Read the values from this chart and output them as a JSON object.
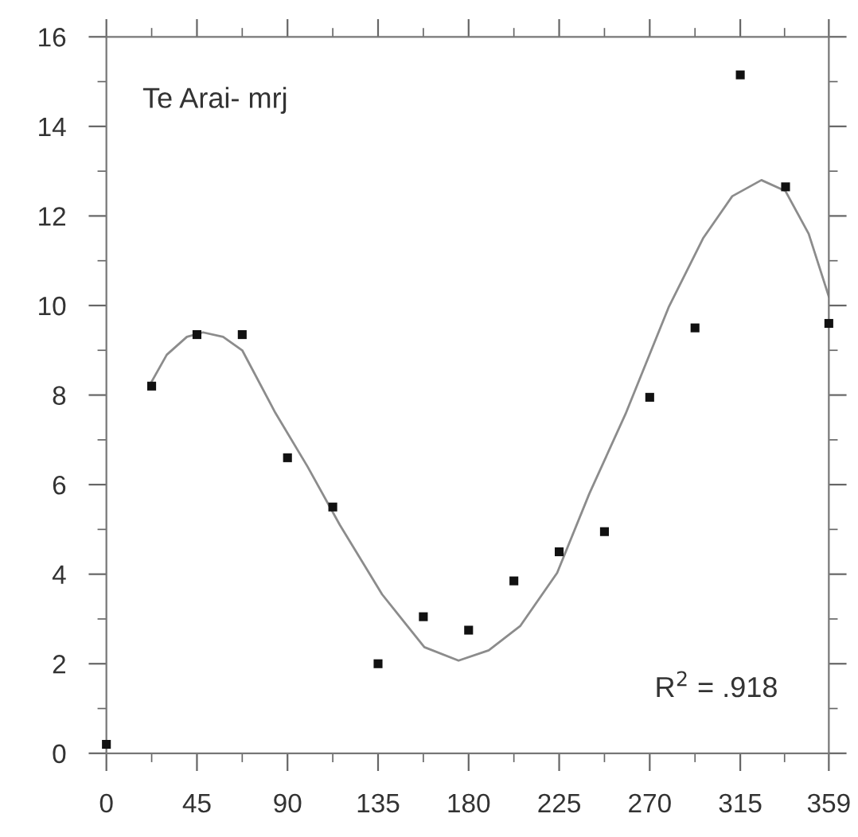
{
  "chart_data": {
    "type": "scatter",
    "annotations": [
      "Te Arai- mrj",
      "R$^{2}$ = .918"
    ],
    "xlim": [
      0,
      359
    ],
    "ylim": [
      0,
      16
    ],
    "xticks": [
      0,
      45,
      90,
      135,
      180,
      225,
      270,
      315,
      359
    ],
    "yticks": [
      0,
      2,
      4,
      6,
      8,
      10,
      12,
      14,
      16
    ],
    "grid": false,
    "legend": false,
    "series": [
      {
        "marker": "square",
        "color": "#111111",
        "x": [
          0,
          22.5,
          45,
          67.5,
          90,
          112.5,
          135,
          157.5,
          180,
          202.5,
          225,
          247.5,
          270,
          292.5,
          315,
          337.5,
          359
        ],
        "values": [
          0.2,
          8.2,
          9.35,
          9.35,
          6.6,
          5.5,
          2.0,
          3.05,
          2.75,
          3.85,
          4.5,
          4.95,
          7.95,
          9.5,
          15.15,
          12.65,
          9.6
        ]
      },
      {
        "type": "line",
        "marker": "none",
        "line_style": "solid",
        "color": "#8c8c8c",
        "x": [
          22.5,
          30,
          40,
          48,
          58,
          67.5,
          84,
          100,
          116,
          137,
          158,
          175,
          190,
          205.6,
          224,
          240,
          258,
          279.4,
          296.5,
          311,
          325.5,
          337.4,
          349,
          359
        ],
        "values": [
          8.3,
          8.9,
          9.3,
          9.4,
          9.3,
          9.0,
          7.6,
          6.4,
          5.1,
          3.55,
          2.37,
          2.07,
          2.3,
          2.84,
          4.03,
          5.8,
          7.58,
          9.96,
          11.5,
          12.44,
          12.8,
          12.56,
          11.6,
          10.2
        ]
      }
    ]
  }
}
